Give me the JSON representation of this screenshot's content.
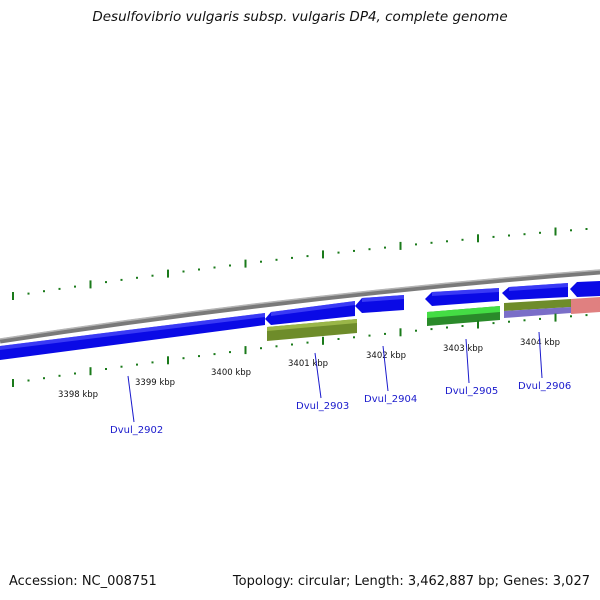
{
  "title": "Desulfovibrio vulgaris subsp. vulgaris DP4, complete genome",
  "footer": {
    "accession": "Accession: NC_008751",
    "stats": "Topology: circular; Length: 3,462,887 bp; Genes: 3,027"
  },
  "ticks": [
    {
      "label": "3398 kbp"
    },
    {
      "label": "3399 kbp"
    },
    {
      "label": "3400 kbp"
    },
    {
      "label": "3401 kbp"
    },
    {
      "label": "3402 kbp"
    },
    {
      "label": "3403 kbp"
    },
    {
      "label": "3404 kbp"
    }
  ],
  "genes": [
    {
      "label": "Dvul_2902"
    },
    {
      "label": "Dvul_2903"
    },
    {
      "label": "Dvul_2904"
    },
    {
      "label": "Dvul_2905"
    },
    {
      "label": "Dvul_2906"
    }
  ],
  "colors": {
    "cds": "#0a0ae6",
    "feature_olive": "#6e8c2a",
    "feature_green": "#33cc33",
    "feature_purple": "#7a6ec8",
    "feature_pink": "#e08080",
    "backbone": "#8a8a8a",
    "tick": "#1a7a1a"
  }
}
